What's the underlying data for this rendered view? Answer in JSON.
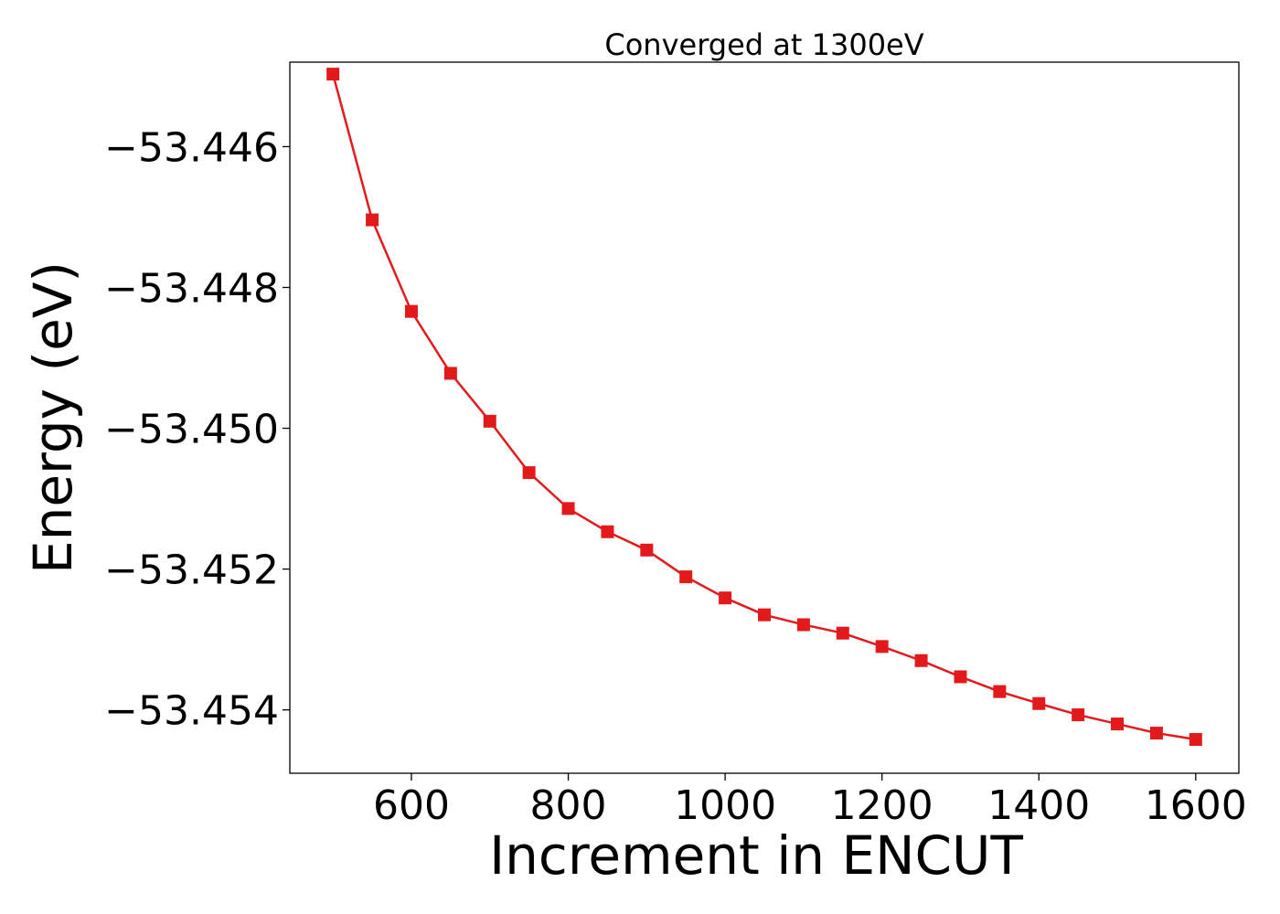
{
  "chart_data": {
    "type": "line",
    "title": "Converged at 1300eV",
    "xlabel": "Increment in ENCUT",
    "ylabel": "Energy (eV)",
    "xlim": [
      445,
      1655
    ],
    "ylim": [
      -53.4549,
      -53.4448
    ],
    "xticks": [
      600,
      800,
      1000,
      1200,
      1400,
      1600
    ],
    "yticks": [
      -53.446,
      -53.448,
      -53.45,
      -53.452,
      -53.454
    ],
    "ytick_labels": [
      "−53.446",
      "−53.448",
      "−53.450",
      "−53.452",
      "−53.454"
    ],
    "grid": false,
    "series": [
      {
        "color": "#e31a1c",
        "marker": "square",
        "x": [
          500,
          550,
          600,
          650,
          700,
          750,
          800,
          850,
          900,
          950,
          1000,
          1050,
          1100,
          1150,
          1200,
          1250,
          1300,
          1350,
          1400,
          1450,
          1500,
          1550,
          1600
        ],
        "y": [
          -53.44497,
          -53.44704,
          -53.44834,
          -53.44922,
          -53.4499,
          -53.45063,
          -53.45114,
          -53.45147,
          -53.45173,
          -53.45211,
          -53.45241,
          -53.45265,
          -53.45279,
          -53.45291,
          -53.4531,
          -53.4533,
          -53.45353,
          -53.45374,
          -53.45391,
          -53.45407,
          -53.4542,
          -53.45433,
          -53.45442
        ]
      }
    ]
  }
}
